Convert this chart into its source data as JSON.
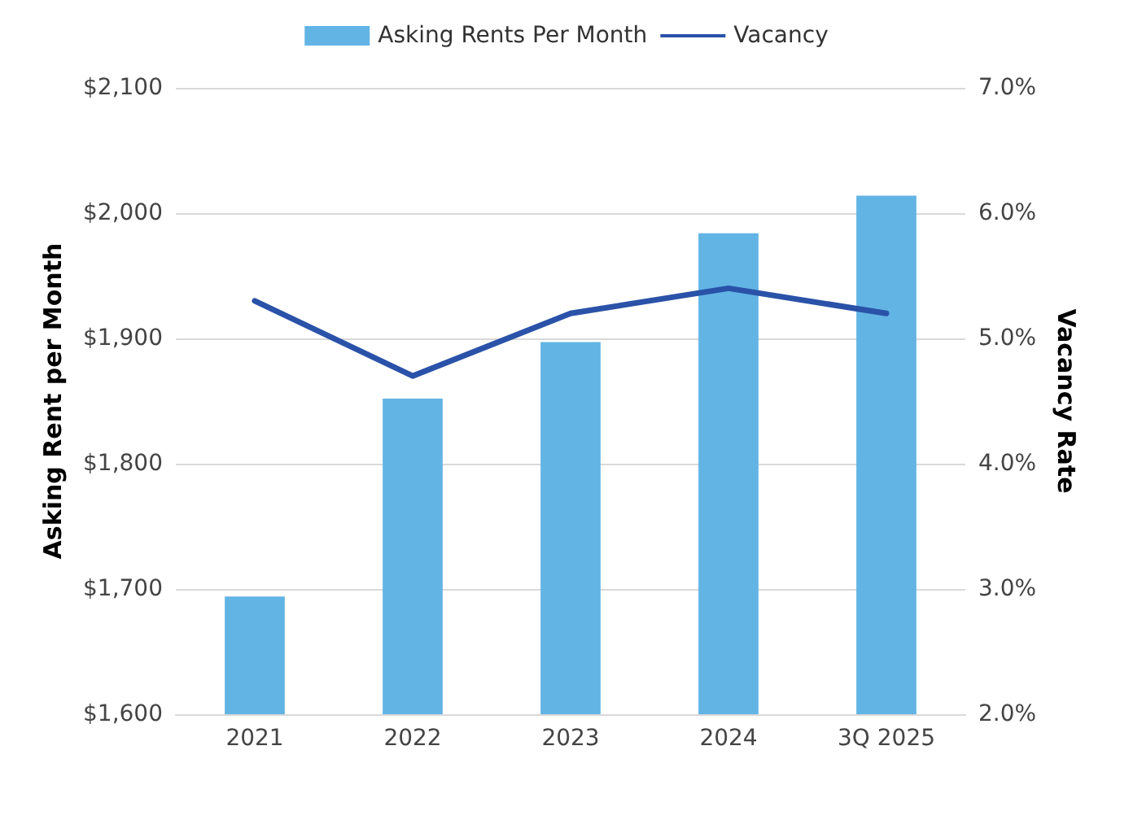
{
  "chart_data": {
    "type": "bar",
    "categories": [
      "2021",
      "2022",
      "2023",
      "2024",
      "3Q 2025"
    ],
    "series": [
      {
        "name": "Asking Rents Per Month",
        "color": "#62b4e4",
        "values": [
          1694,
          1852,
          1897,
          1984,
          2014
        ]
      },
      {
        "name": "Vacancy",
        "type": "line",
        "axis": "y2",
        "color": "#2a52a8",
        "values": [
          5.3,
          4.7,
          5.2,
          5.4,
          5.2
        ]
      }
    ],
    "ylabel": "Asking Rent per Month",
    "y2label": "Vacancy Rate",
    "ylim": [
      1600,
      2100
    ],
    "yticks": [
      {
        "value": 1600,
        "label": "$1,600"
      },
      {
        "value": 1700,
        "label": "$1,700"
      },
      {
        "value": 1800,
        "label": "$1,800"
      },
      {
        "value": 1900,
        "label": "$1,900"
      },
      {
        "value": 2000,
        "label": "$2,000"
      },
      {
        "value": 2100,
        "label": "$2,100"
      }
    ],
    "y2lim": [
      2,
      7
    ],
    "y2ticks": [
      {
        "value": 2,
        "label": "2.0%"
      },
      {
        "value": 3,
        "label": "3.0%"
      },
      {
        "value": 4,
        "label": "4.0%"
      },
      {
        "value": 5,
        "label": "5.0%"
      },
      {
        "value": 6,
        "label": "6.0%"
      },
      {
        "value": 7,
        "label": "7.0%"
      }
    ],
    "grid": "y",
    "legend": "top",
    "marker": "none",
    "line_style": "solid"
  }
}
